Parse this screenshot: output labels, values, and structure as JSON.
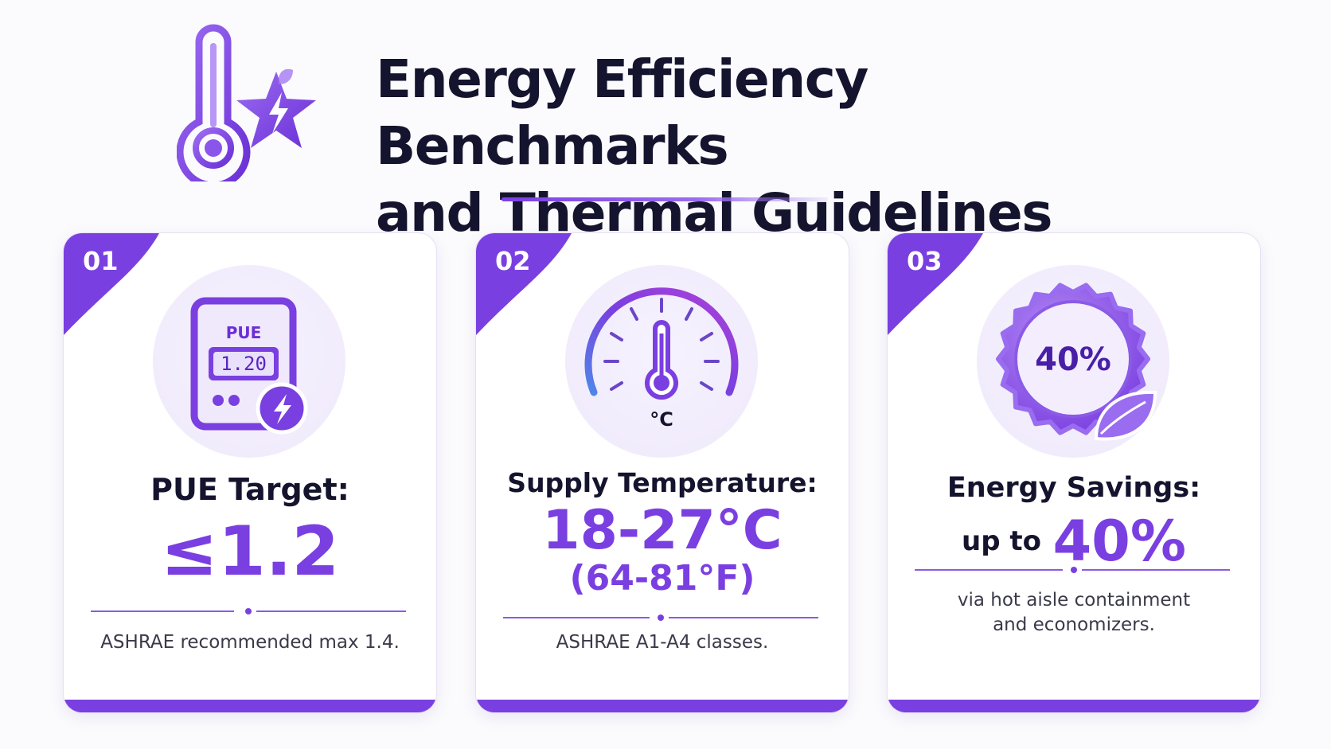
{
  "header": {
    "title_line1": "Energy Efficiency Benchmarks",
    "title_line2": "and Thermal Guidelines",
    "icon": "thermometer-star-bolt-icon"
  },
  "colors": {
    "accent": "#7a3fe0",
    "accent_light": "#efe9fb",
    "title": "#15142e",
    "body_text": "#3a3a4a"
  },
  "cards": [
    {
      "number": "01",
      "icon": "pue-meter-icon",
      "icon_label": "PUE",
      "icon_display": "1.20",
      "label": "PUE Target:",
      "value": "≤1.2",
      "note": "ASHRAE recommended max 1.4."
    },
    {
      "number": "02",
      "icon": "temperature-gauge-icon",
      "icon_unit": "°C",
      "label": "Supply Temperature:",
      "value": "18-27°C",
      "value_secondary": "(64-81°F)",
      "note": "ASHRAE A1-A4 classes."
    },
    {
      "number": "03",
      "icon": "savings-badge-leaf-icon",
      "icon_text": "40%",
      "label": "Energy Savings:",
      "value_prefix": "up to",
      "value": "40%",
      "note_line1": "via hot aisle containment",
      "note_line2": "and economizers."
    }
  ]
}
